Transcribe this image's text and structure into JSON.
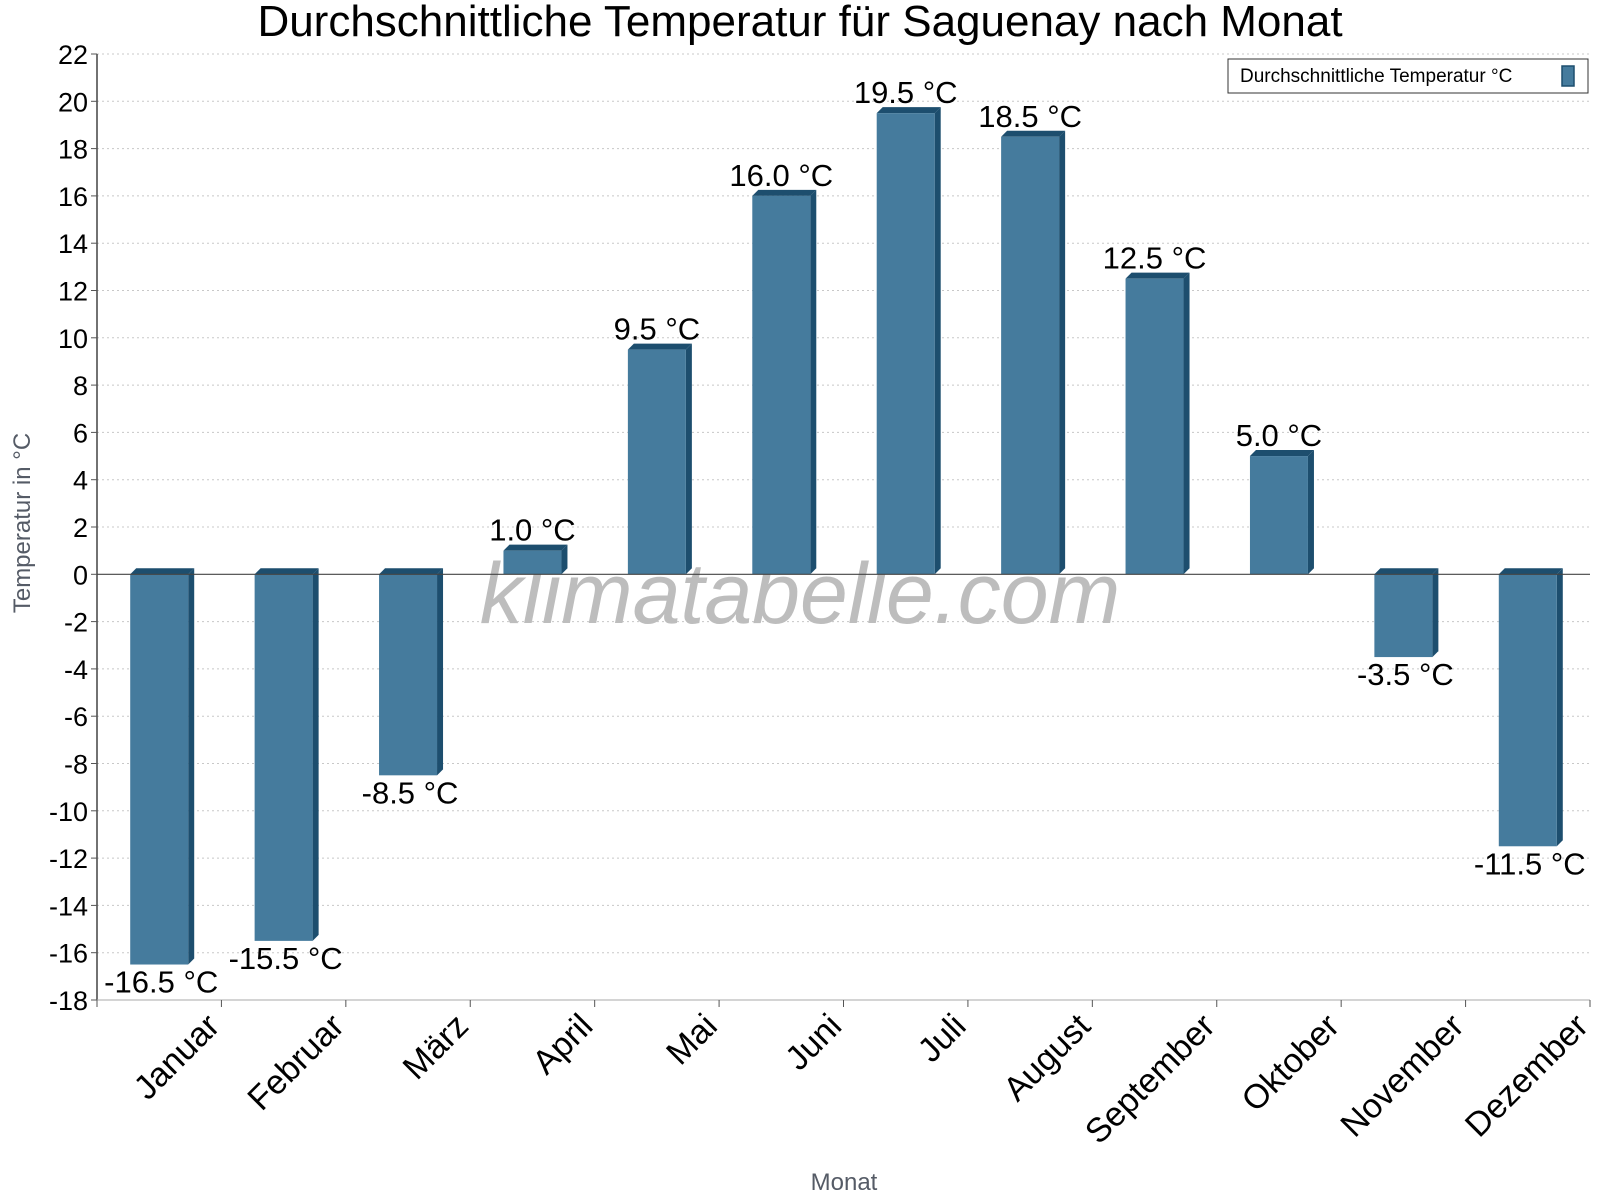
{
  "chart_data": {
    "type": "bar",
    "title": "Durchschnittliche Temperatur für Saguenay nach Monat",
    "xlabel": "Monat",
    "ylabel": "Temperatur in °C",
    "ylim": [
      -18,
      22
    ],
    "ytick_step": 2,
    "grid": true,
    "legend_placement": "top-right",
    "unit": "°C",
    "categories": [
      "Januar",
      "Februar",
      "März",
      "April",
      "Mai",
      "Juni",
      "Juli",
      "August",
      "September",
      "Oktober",
      "November",
      "Dezember"
    ],
    "series": [
      {
        "name": "Durchschnittliche Temperatur °C",
        "color": "#457b9d",
        "edge_color": "#1d4e6e",
        "values": [
          -16.5,
          -15.5,
          -8.5,
          1.0,
          9.5,
          16.0,
          19.5,
          18.5,
          12.5,
          5.0,
          -3.5,
          -11.5
        ]
      }
    ],
    "data_labels": [
      "-16.5 °C",
      "-15.5 °C",
      "-8.5 °C",
      "1.0 °C",
      "9.5 °C",
      "16.0 °C",
      "19.5 °C",
      "18.5 °C",
      "12.5 °C",
      "5.0 °C",
      "-3.5 °C",
      "-11.5 °C"
    ]
  },
  "watermark": "klimatabelle.com"
}
